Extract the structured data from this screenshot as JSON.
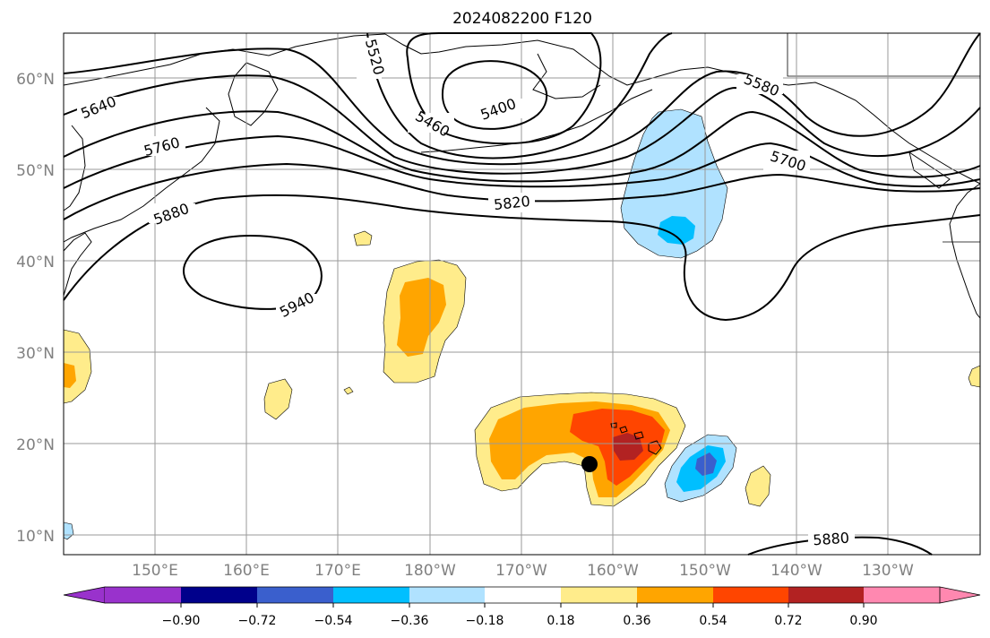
{
  "title": "2024082200 F120",
  "lat_labels": [
    "60°N",
    "50°N",
    "40°N",
    "30°N",
    "20°N",
    "10°N"
  ],
  "lon_labels": [
    "150°E",
    "160°E",
    "170°E",
    "180°W",
    "170°W",
    "160°W",
    "150°W",
    "140°W",
    "130°W"
  ],
  "contour_labels": [
    "5520",
    "5400",
    "5460",
    "5580",
    "5640",
    "5760",
    "5700",
    "5880",
    "5820",
    "5940",
    "5880"
  ],
  "colorbar": {
    "tick_labels": [
      "−0.90",
      "−0.72",
      "−0.54",
      "−0.36",
      "−0.18",
      "0.18",
      "0.36",
      "0.54",
      "0.72",
      "0.90"
    ],
    "colors": [
      "#9932cc",
      "#00008b",
      "#3a5fcd",
      "#00bfff",
      "#b0e2ff",
      "#ffffff",
      "#ffec8b",
      "#ffa500",
      "#ff4500",
      "#b22222",
      "#ff88b0"
    ]
  },
  "marker": {
    "name": "black-dot",
    "color": "#000000"
  }
}
